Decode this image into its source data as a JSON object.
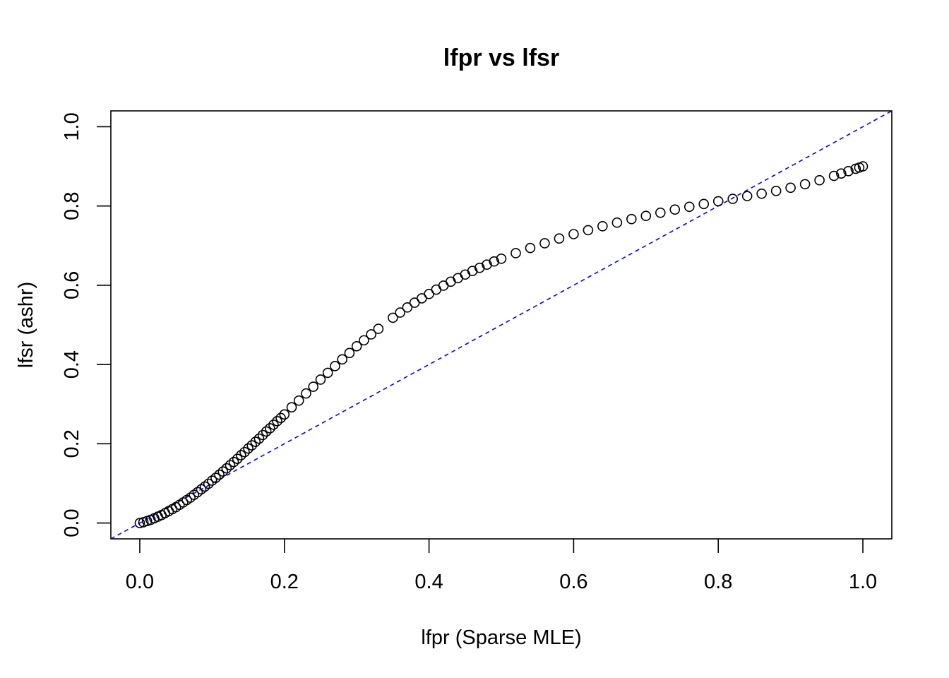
{
  "chart_data": {
    "type": "scatter",
    "title": "lfpr vs lfsr",
    "xlabel": "lfpr (Sparse MLE)",
    "ylabel": "lfsr (ashr)",
    "xlim": [
      -0.04,
      1.04
    ],
    "ylim": [
      -0.04,
      1.04
    ],
    "xticks": [
      "0.0",
      "0.2",
      "0.4",
      "0.6",
      "0.8",
      "1.0"
    ],
    "yticks": [
      "0.0",
      "0.2",
      "0.4",
      "0.6",
      "0.8",
      "1.0"
    ],
    "grid": false,
    "reference_line": {
      "type": "identity",
      "intercept": 0,
      "slope": 1,
      "color": "#0000ff",
      "style": "dashed"
    },
    "point_color": "#000000",
    "x": [
      0,
      0.005,
      0.01,
      0.015,
      0.02,
      0.025,
      0.03,
      0.035,
      0.04,
      0.045,
      0.05,
      0.055,
      0.06,
      0.065,
      0.07,
      0.075,
      0.08,
      0.085,
      0.09,
      0.095,
      0.1,
      0.105,
      0.11,
      0.115,
      0.12,
      0.125,
      0.13,
      0.135,
      0.14,
      0.145,
      0.15,
      0.155,
      0.16,
      0.165,
      0.17,
      0.175,
      0.18,
      0.185,
      0.19,
      0.195,
      0.2,
      0.21,
      0.22,
      0.23,
      0.24,
      0.25,
      0.26,
      0.27,
      0.28,
      0.29,
      0.3,
      0.31,
      0.32,
      0.33,
      0.35,
      0.36,
      0.37,
      0.38,
      0.39,
      0.4,
      0.41,
      0.42,
      0.43,
      0.44,
      0.45,
      0.46,
      0.47,
      0.48,
      0.49,
      0.5,
      0.52,
      0.54,
      0.56,
      0.58,
      0.6,
      0.62,
      0.64,
      0.66,
      0.68,
      0.7,
      0.72,
      0.74,
      0.76,
      0.78,
      0.8,
      0.82,
      0.84,
      0.86,
      0.88,
      0.9,
      0.92,
      0.94,
      0.96,
      0.97,
      0.98,
      0.99,
      0.995,
      1.0
    ],
    "y": [
      0,
      0.002,
      0.005,
      0.008,
      0.012,
      0.016,
      0.02,
      0.025,
      0.03,
      0.035,
      0.04,
      0.046,
      0.052,
      0.058,
      0.064,
      0.071,
      0.078,
      0.085,
      0.092,
      0.099,
      0.107,
      0.114,
      0.122,
      0.13,
      0.138,
      0.146,
      0.154,
      0.162,
      0.171,
      0.179,
      0.188,
      0.196,
      0.205,
      0.213,
      0.222,
      0.231,
      0.239,
      0.248,
      0.257,
      0.265,
      0.274,
      0.292,
      0.309,
      0.327,
      0.344,
      0.362,
      0.379,
      0.396,
      0.413,
      0.429,
      0.446,
      0.461,
      0.476,
      0.49,
      0.518,
      0.531,
      0.544,
      0.556,
      0.567,
      0.578,
      0.589,
      0.599,
      0.609,
      0.618,
      0.627,
      0.636,
      0.644,
      0.652,
      0.66,
      0.667,
      0.681,
      0.694,
      0.706,
      0.718,
      0.729,
      0.739,
      0.749,
      0.758,
      0.767,
      0.775,
      0.783,
      0.791,
      0.798,
      0.805,
      0.812,
      0.818,
      0.825,
      0.831,
      0.838,
      0.846,
      0.855,
      0.865,
      0.876,
      0.882,
      0.888,
      0.894,
      0.897,
      0.9
    ]
  }
}
